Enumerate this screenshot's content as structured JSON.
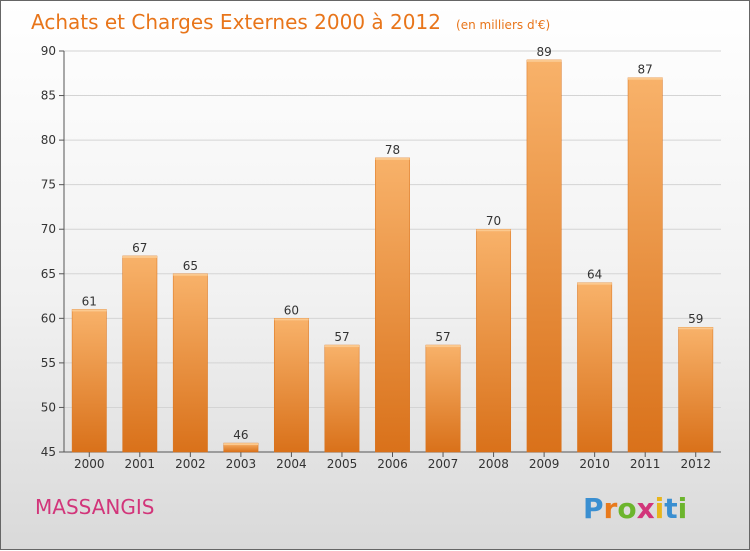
{
  "title": "Achats et Charges Externes 2000 à 2012",
  "unit": "(en milliers d'€)",
  "commune": "MASSANGIS",
  "logo": {
    "letters": [
      "P",
      "r",
      "o",
      "x",
      "i",
      "t",
      "i"
    ],
    "colors": [
      "#3a8fd1",
      "#e87a1c",
      "#6cb52d",
      "#d2357a",
      "#e8b51c",
      "#3a8fd1",
      "#6cb52d"
    ]
  },
  "colors": {
    "bar": "#f0913a",
    "bar_light": "#f8b26a",
    "bar_dark": "#d9711a",
    "title": "#e8751a",
    "commune": "#d2357a"
  },
  "chart_data": {
    "type": "bar",
    "categories": [
      "2000",
      "2001",
      "2002",
      "2003",
      "2004",
      "2005",
      "2006",
      "2007",
      "2008",
      "2009",
      "2010",
      "2011",
      "2012"
    ],
    "values": [
      61,
      67,
      65,
      46,
      60,
      57,
      78,
      57,
      70,
      89,
      64,
      87,
      59
    ],
    "ylim": [
      45,
      90
    ],
    "yticks": [
      45,
      50,
      55,
      60,
      65,
      70,
      75,
      80,
      85,
      90
    ],
    "grid": true
  }
}
